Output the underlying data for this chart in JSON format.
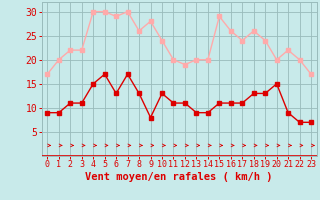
{
  "x": [
    0,
    1,
    2,
    3,
    4,
    5,
    6,
    7,
    8,
    9,
    10,
    11,
    12,
    13,
    14,
    15,
    16,
    17,
    18,
    19,
    20,
    21,
    22,
    23
  ],
  "wind_avg": [
    9,
    9,
    11,
    11,
    15,
    17,
    13,
    17,
    13,
    8,
    13,
    11,
    11,
    9,
    9,
    11,
    11,
    11,
    13,
    13,
    15,
    9,
    7,
    7
  ],
  "wind_gust": [
    17,
    20,
    22,
    22,
    30,
    30,
    29,
    30,
    26,
    28,
    24,
    20,
    19,
    20,
    20,
    29,
    26,
    24,
    26,
    24,
    20,
    22,
    20,
    17
  ],
  "avg_color": "#dd0000",
  "gust_color": "#ffaaaa",
  "bg_color": "#c8eaea",
  "grid_color": "#99bbbb",
  "xlabel": "Vent moyen/en rafales ( km/h )",
  "ylim": [
    0,
    32
  ],
  "yticks": [
    5,
    10,
    15,
    20,
    25,
    30
  ],
  "xticks": [
    0,
    1,
    2,
    3,
    4,
    5,
    6,
    7,
    8,
    9,
    10,
    11,
    12,
    13,
    14,
    15,
    16,
    17,
    18,
    19,
    20,
    21,
    22,
    23
  ],
  "markersize": 2.5,
  "linewidth": 1.0,
  "xlabel_fontsize": 7.5,
  "tick_fontsize": 6,
  "ytick_fontsize": 7
}
